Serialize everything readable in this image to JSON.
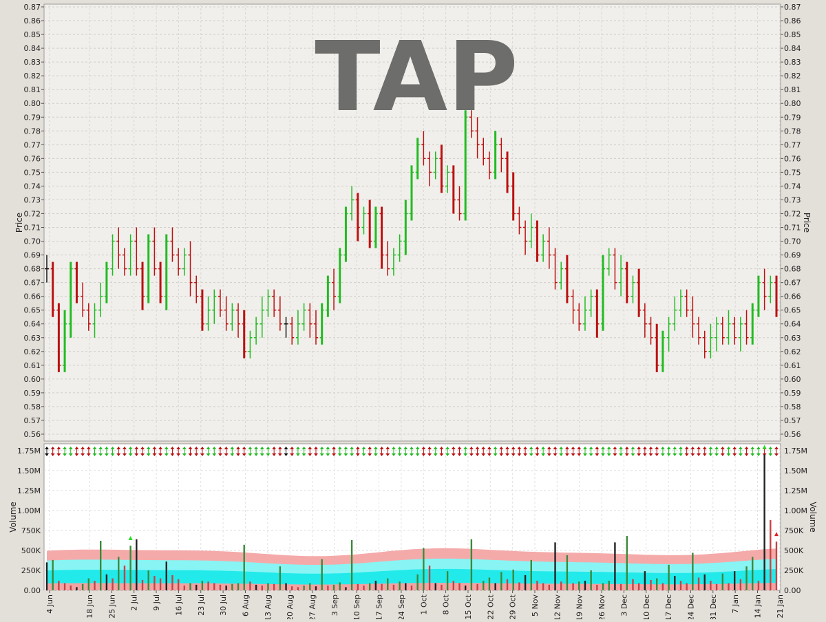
{
  "chart_data": [
    {
      "type": "ohlc",
      "title": "TAP",
      "ylabel": "Price",
      "ylim": [
        0.555,
        0.872
      ],
      "y_ticks": [
        "0.56",
        "0.57",
        "0.58",
        "0.59",
        "0.60",
        "0.61",
        "0.62",
        "0.63",
        "0.64",
        "0.65",
        "0.66",
        "0.67",
        "0.68",
        "0.69",
        "0.70",
        "0.71",
        "0.72",
        "0.73",
        "0.74",
        "0.75",
        "0.76",
        "0.77",
        "0.78",
        "0.79",
        "0.80",
        "0.81",
        "0.82",
        "0.83",
        "0.84",
        "0.85",
        "0.86",
        "0.87"
      ],
      "x_ticks": [
        "4 Jun",
        "18 Jun",
        "25 Jun",
        "2 Jul",
        "9 Jul",
        "16 Jul",
        "23 Jul",
        "30 Jul",
        "6 Aug",
        "13 Aug",
        "20 Aug",
        "27 Aug",
        "3 Sep",
        "10 Sep",
        "17 Sep",
        "24 Sep",
        "1 Oct",
        "8 Oct",
        "15 Oct",
        "22 Oct",
        "29 Oct",
        "5 Nov",
        "12 Nov",
        "19 Nov",
        "26 Nov",
        "3 Dec",
        "10 Dec",
        "17 Dec",
        "24 Dec",
        "31 Dec",
        "7 Jan",
        "14 Jan",
        "21 Jan"
      ],
      "grid": true,
      "colors": {
        "up": "#22bb22",
        "down": "#bb1111",
        "flat": "#111111"
      },
      "price_path": [
        0.68,
        0.65,
        0.61,
        0.64,
        0.68,
        0.66,
        0.65,
        0.64,
        0.65,
        0.66,
        0.68,
        0.7,
        0.69,
        0.68,
        0.7,
        0.68,
        0.66,
        0.7,
        0.68,
        0.66,
        0.7,
        0.69,
        0.68,
        0.69,
        0.67,
        0.66,
        0.64,
        0.65,
        0.66,
        0.65,
        0.64,
        0.65,
        0.64,
        0.62,
        0.63,
        0.64,
        0.65,
        0.66,
        0.65,
        0.64,
        0.64,
        0.63,
        0.64,
        0.65,
        0.64,
        0.63,
        0.65,
        0.67,
        0.66,
        0.69,
        0.72,
        0.73,
        0.71,
        0.72,
        0.7,
        0.72,
        0.69,
        0.68,
        0.69,
        0.7,
        0.72,
        0.75,
        0.77,
        0.76,
        0.75,
        0.76,
        0.74,
        0.75,
        0.73,
        0.72,
        0.79,
        0.78,
        0.77,
        0.76,
        0.75,
        0.77,
        0.76,
        0.74,
        0.72,
        0.71,
        0.7,
        0.71,
        0.69,
        0.7,
        0.69,
        0.67,
        0.68,
        0.66,
        0.65,
        0.64,
        0.65,
        0.66,
        0.64,
        0.68,
        0.69,
        0.67,
        0.68,
        0.66,
        0.67,
        0.65,
        0.64,
        0.63,
        0.61,
        0.63,
        0.64,
        0.65,
        0.66,
        0.65,
        0.64,
        0.63,
        0.62,
        0.63,
        0.64,
        0.63,
        0.64,
        0.63,
        0.64,
        0.63,
        0.65,
        0.67,
        0.66,
        0.67,
        0.65
      ]
    },
    {
      "type": "bar",
      "ylabel": "Volume",
      "ylim": [
        0,
        1800000
      ],
      "y_ticks": [
        "0.00",
        "250K",
        "500K",
        "750K",
        "1.00M",
        "1.25M",
        "1.50M",
        "1.75M"
      ],
      "grid": true,
      "volume_path": [
        350000,
        380000,
        120000,
        90000,
        60000,
        40000,
        80000,
        150000,
        120000,
        620000,
        200000,
        150000,
        420000,
        310000,
        560000,
        640000,
        130000,
        250000,
        180000,
        150000,
        360000,
        190000,
        140000,
        60000,
        90000,
        70000,
        120000,
        110000,
        90000,
        70000,
        60000,
        80000,
        90000,
        570000,
        110000,
        70000,
        60000,
        90000,
        80000,
        300000,
        90000,
        50000,
        40000,
        60000,
        90000,
        50000,
        390000,
        60000,
        70000,
        100000,
        40000,
        630000,
        80000,
        60000,
        90000,
        120000,
        80000,
        150000,
        70000,
        110000,
        90000,
        60000,
        200000,
        530000,
        310000,
        90000,
        70000,
        240000,
        120000,
        90000,
        60000,
        640000,
        80000,
        120000,
        160000,
        90000,
        230000,
        140000,
        260000,
        100000,
        190000,
        380000,
        120000,
        90000,
        70000,
        600000,
        110000,
        440000,
        90000,
        110000,
        120000,
        250000,
        70000,
        90000,
        120000,
        600000,
        80000,
        680000,
        140000,
        90000,
        240000,
        130000,
        150000,
        90000,
        320000,
        180000,
        120000,
        90000,
        470000,
        160000,
        200000,
        120000,
        80000,
        210000,
        90000,
        240000,
        140000,
        300000,
        420000,
        120000,
        1700000,
        880000,
        610000
      ],
      "ma_long": 480000,
      "ma_short": 360000,
      "band_mid": 240000
    }
  ]
}
